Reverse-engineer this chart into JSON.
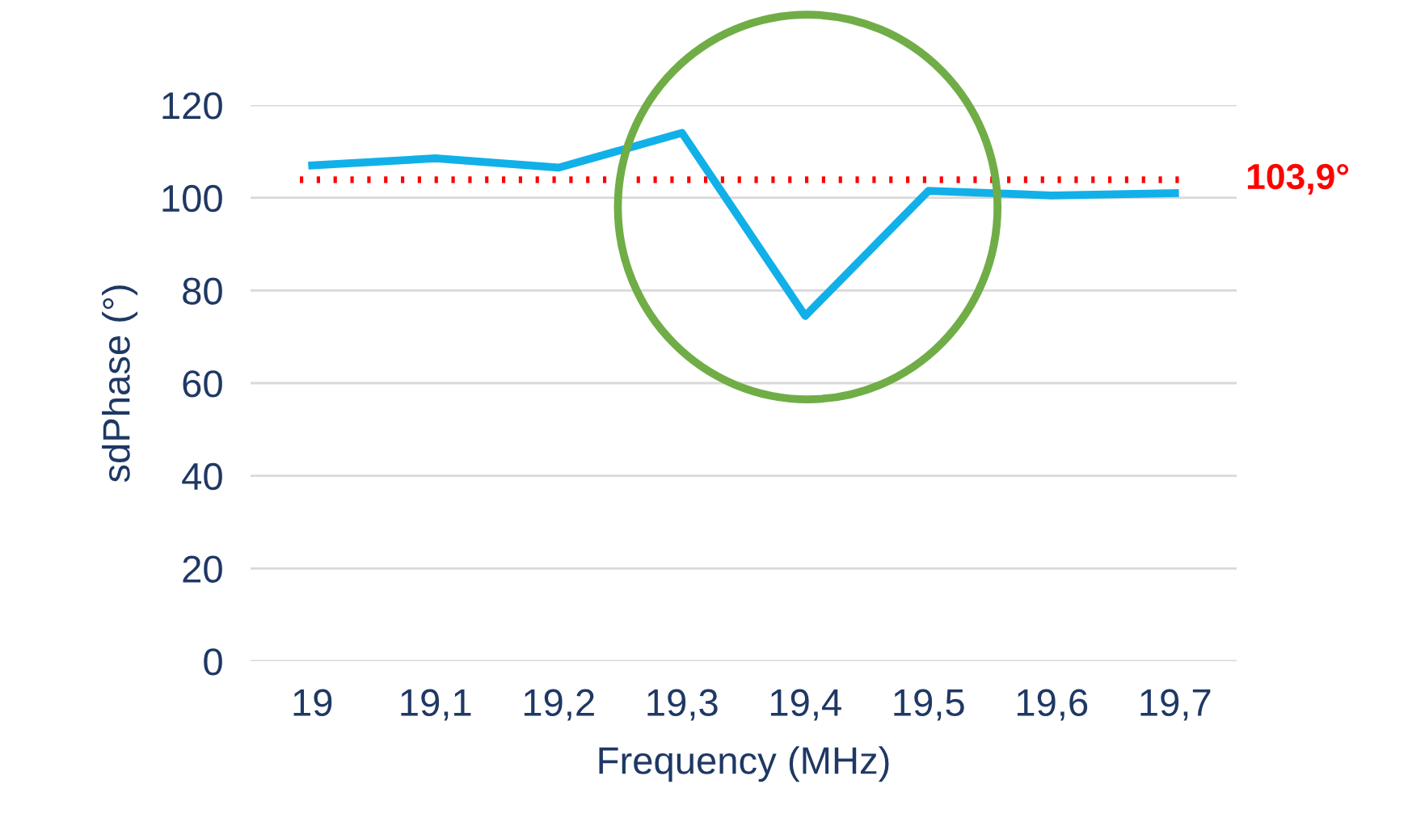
{
  "chart_data": {
    "type": "line",
    "xlabel": "Frequency (MHz)",
    "ylabel": "sdPhase (°)",
    "categories": [
      "19",
      "19,1",
      "19,2",
      "19,3",
      "19,4",
      "19,5",
      "19,6",
      "19,7"
    ],
    "series": [
      {
        "color": "#12b0e8",
        "values": [
          107,
          108.5,
          106.5,
          114,
          74.5,
          101.5,
          100.5,
          101
        ]
      }
    ],
    "ylim": [
      0,
      120
    ],
    "yticks": [
      0,
      20,
      40,
      60,
      80,
      100,
      120
    ],
    "grid": "y",
    "marker": "none",
    "line_style": "solid",
    "ref_lines": [
      {
        "axis": "y",
        "value": 103.9,
        "label": "103,9°",
        "color": "#ff0000",
        "line_style": "dotted"
      }
    ]
  }
}
